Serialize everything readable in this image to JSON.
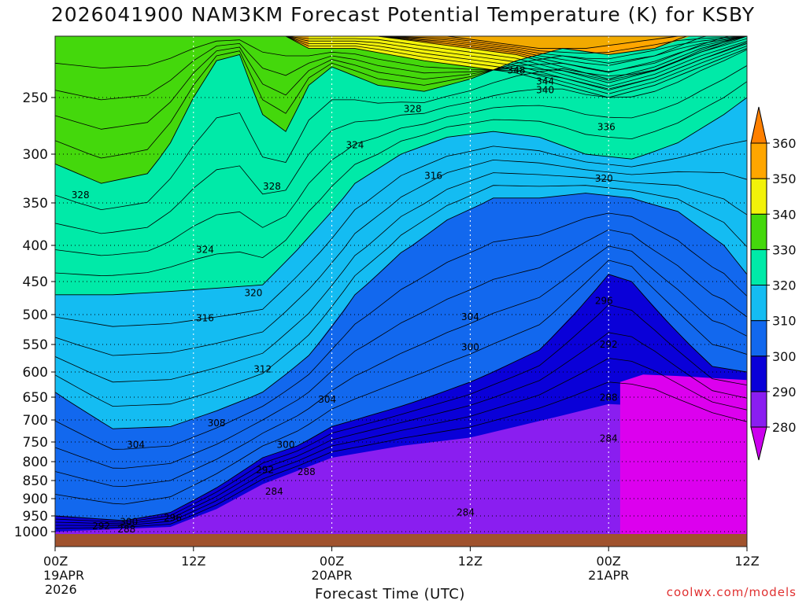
{
  "chart_data": {
    "type": "heatmap",
    "title": "2026041900 NAM3KM Forecast Potential Temperature (K) for KSBY",
    "xlabel": "Forecast Time (UTC)",
    "ylabel": "",
    "watermark": "coolwx.com/models",
    "x_range_hours": [
      0,
      60
    ],
    "y_range_hPa": [
      1000,
      200
    ],
    "x_ticks": [
      {
        "hour": 0,
        "label": "00Z",
        "sub": "19APR",
        "sub2": "2026"
      },
      {
        "hour": 12,
        "label": "12Z",
        "sub": "",
        "sub2": ""
      },
      {
        "hour": 24,
        "label": "00Z",
        "sub": "20APR",
        "sub2": ""
      },
      {
        "hour": 36,
        "label": "12Z",
        "sub": "",
        "sub2": ""
      },
      {
        "hour": 48,
        "label": "00Z",
        "sub": "21APR",
        "sub2": ""
      },
      {
        "hour": 60,
        "label": "12Z",
        "sub": "",
        "sub2": ""
      }
    ],
    "y_ticks": [
      1000,
      950,
      900,
      850,
      800,
      750,
      700,
      650,
      600,
      550,
      500,
      450,
      400,
      350,
      300,
      250
    ],
    "colorbar": {
      "levels": [
        280,
        290,
        300,
        310,
        320,
        330,
        340,
        350,
        360
      ],
      "colors": [
        "#cc00ee",
        "#8a1ef0",
        "#0a00d8",
        "#1268ee",
        "#14bcf2",
        "#00eaa8",
        "#44d80c",
        "#f2f20a",
        "#ffa600",
        "#ff8000"
      ]
    },
    "bands": [
      {
        "range": "<280",
        "color": "#dc00ee",
        "top": [
          [
            49,
            620
          ],
          [
            51,
            605
          ],
          [
            54,
            608
          ],
          [
            57,
            612
          ],
          [
            60,
            616
          ]
        ],
        "bottom_p": 1000
      },
      {
        "range": "280-290",
        "color": "#8a1ef0",
        "top": [
          [
            0,
            1000
          ],
          [
            10,
            985
          ],
          [
            14,
            930
          ],
          [
            18,
            860
          ],
          [
            24,
            790
          ],
          [
            30,
            760
          ],
          [
            36,
            740
          ],
          [
            40,
            715
          ],
          [
            44,
            690
          ],
          [
            48,
            665
          ],
          [
            52,
            670
          ],
          [
            56,
            700
          ],
          [
            60,
            730
          ]
        ]
      },
      {
        "range": "290-300",
        "color": "#0a00d8",
        "top": [
          [
            0,
            950
          ],
          [
            6,
            965
          ],
          [
            10,
            940
          ],
          [
            14,
            870
          ],
          [
            18,
            790
          ],
          [
            21,
            760
          ],
          [
            24,
            715
          ],
          [
            30,
            670
          ],
          [
            36,
            620
          ],
          [
            42,
            560
          ],
          [
            46,
            480
          ],
          [
            48,
            440
          ],
          [
            50,
            450
          ],
          [
            54,
            530
          ],
          [
            57,
            590
          ],
          [
            60,
            600
          ]
        ]
      },
      {
        "range": "300-310",
        "color": "#1268ee",
        "top": [
          [
            0,
            640
          ],
          [
            5,
            720
          ],
          [
            10,
            715
          ],
          [
            14,
            680
          ],
          [
            18,
            640
          ],
          [
            22,
            570
          ],
          [
            26,
            470
          ],
          [
            30,
            410
          ],
          [
            34,
            370
          ],
          [
            38,
            345
          ],
          [
            42,
            345
          ],
          [
            46,
            340
          ],
          [
            50,
            345
          ],
          [
            54,
            360
          ],
          [
            58,
            400
          ],
          [
            60,
            440
          ]
        ]
      },
      {
        "range": "310-320",
        "color": "#14bcf2",
        "top": [
          [
            0,
            470
          ],
          [
            5,
            470
          ],
          [
            10,
            465
          ],
          [
            14,
            460
          ],
          [
            18,
            455
          ],
          [
            22,
            390
          ],
          [
            26,
            330
          ],
          [
            30,
            300
          ],
          [
            34,
            285
          ],
          [
            38,
            280
          ],
          [
            42,
            285
          ],
          [
            46,
            300
          ],
          [
            50,
            305
          ],
          [
            54,
            290
          ],
          [
            58,
            265
          ],
          [
            60,
            250
          ]
        ]
      },
      {
        "range": "320-330",
        "color": "#00eaa8",
        "top": [
          [
            0,
            310
          ],
          [
            4,
            330
          ],
          [
            8,
            320
          ],
          [
            10,
            290
          ],
          [
            12,
            250
          ],
          [
            14,
            220
          ],
          [
            16,
            215
          ],
          [
            18,
            265
          ],
          [
            20,
            280
          ],
          [
            22,
            240
          ],
          [
            24,
            225
          ],
          [
            28,
            240
          ],
          [
            32,
            245
          ],
          [
            36,
            235
          ],
          [
            40,
            220
          ],
          [
            44,
            210
          ],
          [
            48,
            215
          ],
          [
            52,
            210
          ],
          [
            56,
            195
          ],
          [
            60,
            185
          ]
        ]
      },
      {
        "range": "330-340",
        "color": "#44d80c",
        "top": [
          [
            0,
            200
          ],
          [
            20,
            200
          ],
          [
            22,
            210
          ],
          [
            26,
            210
          ],
          [
            32,
            220
          ],
          [
            36,
            225
          ],
          [
            40,
            230
          ],
          [
            44,
            240
          ],
          [
            48,
            250
          ],
          [
            52,
            240
          ],
          [
            56,
            225
          ],
          [
            60,
            210
          ]
        ]
      },
      {
        "range": "340-350",
        "color": "#f2f20a",
        "top": [
          [
            22,
            200
          ],
          [
            28,
            200
          ],
          [
            32,
            205
          ],
          [
            36,
            210
          ],
          [
            40,
            215
          ],
          [
            44,
            225
          ],
          [
            48,
            235
          ],
          [
            52,
            225
          ],
          [
            56,
            210
          ],
          [
            60,
            200
          ]
        ]
      },
      {
        "range": "350-360",
        "color": "#ffa600",
        "top": [
          [
            26,
            200
          ],
          [
            30,
            200
          ],
          [
            34,
            200
          ],
          [
            38,
            205
          ],
          [
            42,
            210
          ],
          [
            46,
            210
          ],
          [
            50,
            205
          ],
          [
            54,
            200
          ]
        ]
      }
    ],
    "contour_labels": [
      {
        "text": "348",
        "hour": 40.0,
        "p": 228
      },
      {
        "text": "344",
        "hour": 42.5,
        "p": 237
      },
      {
        "text": "340",
        "hour": 42.5,
        "p": 244
      },
      {
        "text": "336",
        "hour": 47.8,
        "p": 276
      },
      {
        "text": "328",
        "hour": 31.0,
        "p": 260
      },
      {
        "text": "324",
        "hour": 26.0,
        "p": 292
      },
      {
        "text": "328",
        "hour": 2.2,
        "p": 342
      },
      {
        "text": "328",
        "hour": 18.8,
        "p": 333
      },
      {
        "text": "316",
        "hour": 32.8,
        "p": 322
      },
      {
        "text": "320",
        "hour": 47.6,
        "p": 325
      },
      {
        "text": "324",
        "hour": 13.0,
        "p": 406
      },
      {
        "text": "320",
        "hour": 17.2,
        "p": 467
      },
      {
        "text": "316",
        "hour": 13.0,
        "p": 506
      },
      {
        "text": "304",
        "hour": 36.0,
        "p": 504
      },
      {
        "text": "296",
        "hour": 47.6,
        "p": 479
      },
      {
        "text": "300",
        "hour": 36.0,
        "p": 555
      },
      {
        "text": "292",
        "hour": 48.0,
        "p": 550
      },
      {
        "text": "312",
        "hour": 18.0,
        "p": 595
      },
      {
        "text": "288",
        "hour": 48.0,
        "p": 651
      },
      {
        "text": "304",
        "hour": 23.6,
        "p": 655
      },
      {
        "text": "308",
        "hour": 14.0,
        "p": 707
      },
      {
        "text": "284",
        "hour": 48.0,
        "p": 742
      },
      {
        "text": "304",
        "hour": 7.0,
        "p": 757
      },
      {
        "text": "300",
        "hour": 20.0,
        "p": 757
      },
      {
        "text": "292",
        "hour": 18.2,
        "p": 822
      },
      {
        "text": "288",
        "hour": 21.8,
        "p": 827
      },
      {
        "text": "284",
        "hour": 19.0,
        "p": 880
      },
      {
        "text": "284",
        "hour": 35.6,
        "p": 940
      },
      {
        "text": "296",
        "hour": 10.2,
        "p": 956
      },
      {
        "text": "300",
        "hour": 6.4,
        "p": 969
      },
      {
        "text": "292",
        "hour": 4.0,
        "p": 983
      },
      {
        "text": "288",
        "hour": 6.2,
        "p": 993
      }
    ]
  }
}
